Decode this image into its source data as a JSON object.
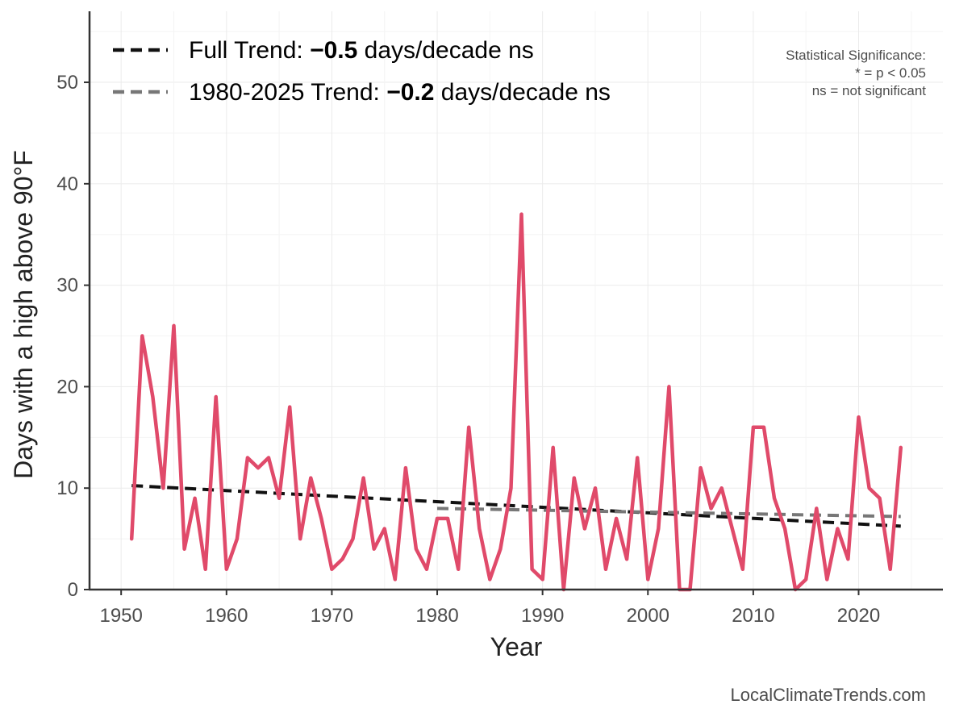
{
  "chart_data": {
    "type": "line",
    "xlabel": "Year",
    "ylabel": "Days with a high above 90°F",
    "xlim": [
      1947,
      2028
    ],
    "ylim": [
      0,
      57
    ],
    "xticks": [
      1950,
      1960,
      1970,
      1980,
      1990,
      2000,
      2010,
      2020
    ],
    "yticks": [
      0,
      10,
      20,
      30,
      40,
      50
    ],
    "grid": true,
    "series": [
      {
        "color": "#e04a6a",
        "x": [
          1951,
          1952,
          1953,
          1954,
          1955,
          1956,
          1957,
          1958,
          1959,
          1960,
          1961,
          1962,
          1963,
          1964,
          1965,
          1966,
          1967,
          1968,
          1969,
          1970,
          1971,
          1972,
          1973,
          1974,
          1975,
          1976,
          1977,
          1978,
          1979,
          1980,
          1981,
          1982,
          1983,
          1984,
          1985,
          1986,
          1987,
          1988,
          1989,
          1990,
          1991,
          1992,
          1993,
          1994,
          1995,
          1996,
          1997,
          1998,
          1999,
          2000,
          2001,
          2002,
          2003,
          2004,
          2005,
          2006,
          2007,
          2008,
          2009,
          2010,
          2011,
          2012,
          2013,
          2014,
          2015,
          2016,
          2017,
          2018,
          2019,
          2020,
          2021,
          2022,
          2023,
          2024
        ],
        "y": [
          5,
          25,
          19,
          10,
          26,
          4,
          9,
          2,
          19,
          2,
          5,
          13,
          12,
          13,
          9,
          18,
          5,
          11,
          7,
          2,
          3,
          5,
          11,
          4,
          6,
          1,
          12,
          4,
          2,
          7,
          7,
          2,
          16,
          6,
          1,
          4,
          10,
          37,
          2,
          1,
          14,
          0,
          11,
          6,
          10,
          2,
          7,
          3,
          13,
          1,
          6,
          20,
          0,
          0,
          12,
          8,
          10,
          6,
          2,
          16,
          16,
          9,
          6,
          0,
          1,
          8,
          1,
          6,
          3,
          17,
          10,
          9,
          2,
          14
        ]
      }
    ],
    "trends": [
      {
        "name": "Full Trend",
        "x": [
          1951,
          2024
        ],
        "y": [
          10.25,
          6.25
        ],
        "color": "#111111"
      },
      {
        "name": "1980-2025 Trend",
        "x": [
          1980,
          2024
        ],
        "y": [
          8.0,
          7.2
        ],
        "color": "#777777"
      }
    ],
    "legend": {
      "position": "top-left",
      "items": [
        {
          "prefix": "Full Trend: ",
          "value": "−0.5",
          "suffix": " days/decade ns",
          "color": "#111111"
        },
        {
          "prefix": "1980-2025 Trend: ",
          "value": "−0.2",
          "suffix": " days/decade ns",
          "color": "#777777"
        }
      ]
    },
    "annotation": [
      "Statistical Significance:",
      "* = p < 0.05",
      "ns = not significant"
    ]
  },
  "credit": "LocalClimateTrends.com"
}
